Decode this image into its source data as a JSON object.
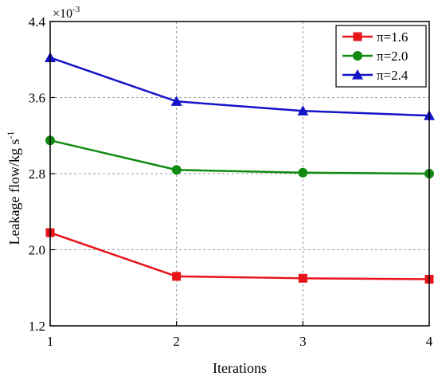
{
  "chart_data": {
    "type": "line",
    "title": "",
    "xlabel": "Iterations",
    "ylabel_main": "Leakage flow/kg s",
    "ylabel_sup": "-1",
    "y_multiplier": {
      "base": "×10",
      "exponent": "-3"
    },
    "x": [
      1,
      2,
      3,
      4
    ],
    "xlim": [
      1,
      4
    ],
    "ylim": [
      1.2,
      4.4
    ],
    "x_ticks": [
      "1",
      "2",
      "3",
      "4"
    ],
    "y_ticks": [
      {
        "value": 1.2,
        "label": "1.2"
      },
      {
        "value": 2.0,
        "label": "2.0"
      },
      {
        "value": 2.8,
        "label": "2.8"
      },
      {
        "value": 3.6,
        "label": "3.6"
      },
      {
        "value": 4.4,
        "label": "4.4"
      }
    ],
    "grid": true,
    "legend_position": "top-right",
    "series": [
      {
        "name": "π=1.6",
        "color": "#e8141a",
        "marker": "square",
        "values": [
          2.18,
          1.72,
          1.7,
          1.69
        ]
      },
      {
        "name": "π=2.0",
        "color": "#118a11",
        "marker": "circle",
        "values": [
          3.15,
          2.84,
          2.81,
          2.8
        ]
      },
      {
        "name": "π=2.4",
        "color": "#1414c8",
        "marker": "triangle",
        "values": [
          4.02,
          3.56,
          3.46,
          3.41
        ]
      }
    ]
  }
}
